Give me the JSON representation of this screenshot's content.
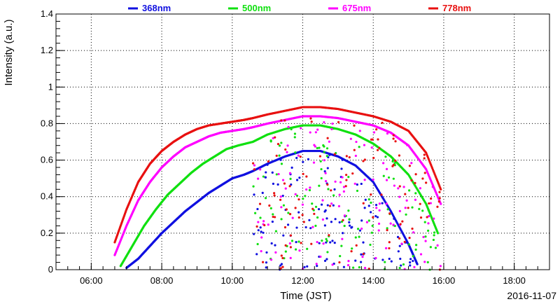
{
  "chart_data": {
    "type": "scatter",
    "title": "",
    "xlabel": "Time (JST)",
    "ylabel": "Intensity (a.u.)",
    "date_label": "2016-11-07",
    "xlim": [
      "05:00",
      "19:00"
    ],
    "ylim": [
      0,
      1.4
    ],
    "x_ticks": [
      "06:00",
      "08:00",
      "10:00",
      "12:00",
      "14:00",
      "16:00",
      "18:00"
    ],
    "y_ticks": [
      "0",
      "0.2",
      "0.4",
      "0.6",
      "0.8",
      "1",
      "1.2",
      "1.4"
    ],
    "grid": true,
    "legend_position": "top",
    "series": [
      {
        "name": "368nm",
        "color": "#1010e0",
        "x": [
          "07:00",
          "07:20",
          "07:40",
          "08:00",
          "08:20",
          "08:40",
          "09:00",
          "09:20",
          "09:40",
          "10:00",
          "10:20",
          "10:35",
          "11:00",
          "11:30",
          "12:00",
          "12:30",
          "13:00",
          "13:30",
          "14:00",
          "14:30",
          "15:00",
          "15:15"
        ],
        "y": [
          0.01,
          0.06,
          0.13,
          0.2,
          0.26,
          0.32,
          0.37,
          0.42,
          0.46,
          0.5,
          0.52,
          0.54,
          0.58,
          0.62,
          0.65,
          0.65,
          0.62,
          0.57,
          0.48,
          0.32,
          0.14,
          0.03
        ]
      },
      {
        "name": "500nm",
        "color": "#10e010",
        "x": [
          "06:50",
          "07:10",
          "07:30",
          "07:50",
          "08:10",
          "08:30",
          "08:50",
          "09:10",
          "09:30",
          "09:50",
          "10:10",
          "10:35",
          "11:00",
          "11:30",
          "12:00",
          "12:30",
          "13:00",
          "13:30",
          "14:00",
          "14:30",
          "15:00",
          "15:30",
          "15:50"
        ],
        "y": [
          0.02,
          0.13,
          0.24,
          0.33,
          0.41,
          0.47,
          0.53,
          0.58,
          0.62,
          0.66,
          0.68,
          0.7,
          0.74,
          0.77,
          0.79,
          0.79,
          0.77,
          0.74,
          0.69,
          0.62,
          0.52,
          0.36,
          0.2
        ]
      },
      {
        "name": "675nm",
        "color": "#ff00ff",
        "x": [
          "06:40",
          "07:00",
          "07:20",
          "07:40",
          "08:00",
          "08:20",
          "08:40",
          "09:00",
          "09:20",
          "09:40",
          "10:00",
          "10:20",
          "10:35",
          "11:00",
          "11:30",
          "12:00",
          "12:30",
          "13:00",
          "13:30",
          "14:00",
          "14:30",
          "15:00",
          "15:30",
          "15:55"
        ],
        "y": [
          0.08,
          0.24,
          0.38,
          0.48,
          0.56,
          0.62,
          0.67,
          0.7,
          0.73,
          0.75,
          0.76,
          0.77,
          0.78,
          0.8,
          0.82,
          0.84,
          0.84,
          0.83,
          0.81,
          0.79,
          0.75,
          0.68,
          0.55,
          0.36
        ]
      },
      {
        "name": "778nm",
        "color": "#e81010",
        "x": [
          "06:40",
          "07:00",
          "07:20",
          "07:40",
          "08:00",
          "08:20",
          "08:40",
          "09:00",
          "09:20",
          "09:40",
          "10:00",
          "10:20",
          "10:35",
          "11:00",
          "11:30",
          "12:00",
          "12:30",
          "13:00",
          "13:30",
          "14:00",
          "14:30",
          "15:00",
          "15:30",
          "15:55"
        ],
        "y": [
          0.15,
          0.33,
          0.48,
          0.58,
          0.65,
          0.7,
          0.74,
          0.77,
          0.79,
          0.8,
          0.81,
          0.82,
          0.83,
          0.85,
          0.87,
          0.89,
          0.89,
          0.88,
          0.86,
          0.84,
          0.81,
          0.76,
          0.64,
          0.44
        ]
      }
    ]
  }
}
